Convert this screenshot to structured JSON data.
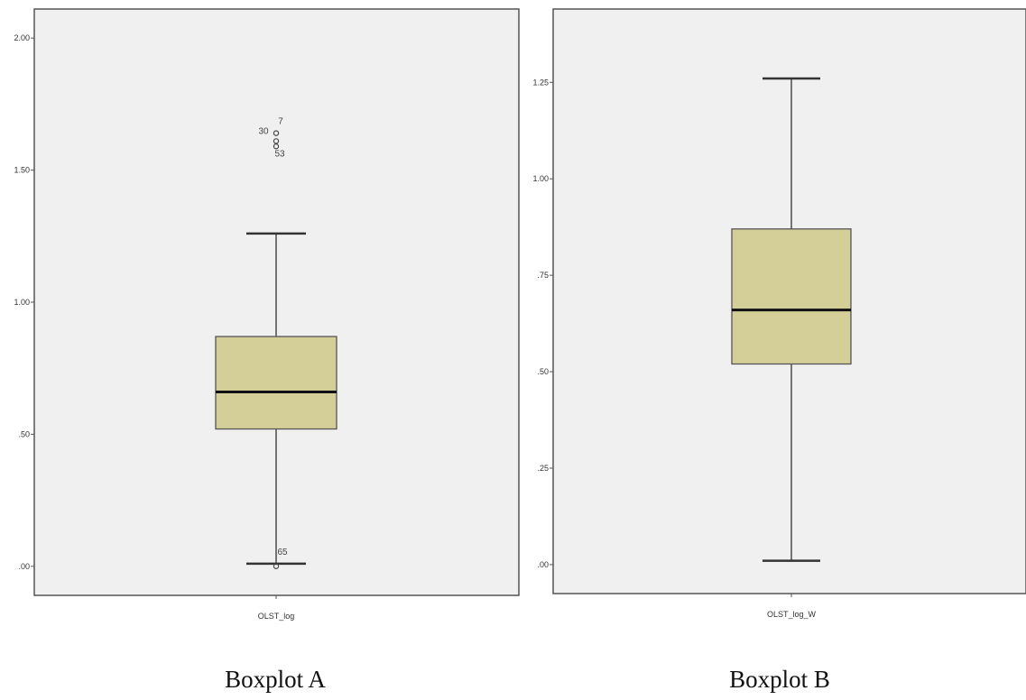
{
  "chart_data": [
    {
      "type": "boxplot",
      "category": "OLST_log",
      "yticks": [
        {
          "value": 0.0,
          "label": ".00"
        },
        {
          "value": 0.5,
          "label": ".50"
        },
        {
          "value": 1.0,
          "label": "1.00"
        },
        {
          "value": 1.5,
          "label": "1.50"
        },
        {
          "value": 2.0,
          "label": "2.00"
        }
      ],
      "ylim": [
        -0.11,
        2.11
      ],
      "box": {
        "whisker_low": 0.01,
        "q1": 0.52,
        "median": 0.66,
        "q3": 0.87,
        "whisker_high": 1.26
      },
      "box_color": "#d4cf98",
      "outliers": [
        {
          "value": 0.0,
          "label": "65"
        },
        {
          "value": 1.61,
          "label": "30"
        },
        {
          "value": 1.64,
          "label": "7"
        },
        {
          "value": 1.59,
          "label": "53"
        }
      ],
      "grid": false
    },
    {
      "type": "boxplot",
      "category": "OLST_log_W",
      "yticks": [
        {
          "value": 0.0,
          "label": ".00"
        },
        {
          "value": 0.25,
          "label": ".25"
        },
        {
          "value": 0.5,
          "label": ".50"
        },
        {
          "value": 0.75,
          "label": ".75"
        },
        {
          "value": 1.0,
          "label": "1.00"
        },
        {
          "value": 1.25,
          "label": "1.25"
        }
      ],
      "ylim": [
        -0.075,
        1.44
      ],
      "box": {
        "whisker_low": 0.01,
        "q1": 0.52,
        "median": 0.66,
        "q3": 0.87,
        "whisker_high": 1.26
      },
      "box_color": "#d4cf98",
      "outliers": [],
      "grid": false
    }
  ],
  "captions": {
    "a": "Boxplot A",
    "b": "Boxplot B"
  }
}
